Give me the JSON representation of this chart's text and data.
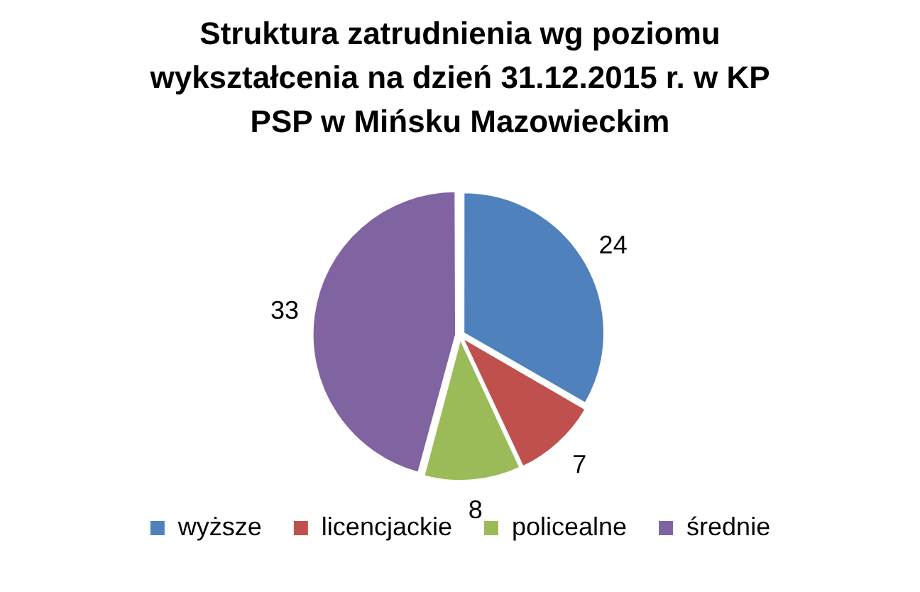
{
  "chart_data": {
    "type": "pie",
    "title": "Struktura zatrudnienia wg poziomu wykształcenia na dzień 31.12.2015 r. w KP PSP w Mińsku Mazowieckim",
    "categories": [
      "wyższe",
      "licencjackie",
      "policealne",
      "średnie"
    ],
    "values": [
      24,
      7,
      8,
      33
    ],
    "colors": [
      "#4f81bd",
      "#c0504d",
      "#9bbb59",
      "#8064a2"
    ],
    "data_labels": true,
    "legend": "bottom"
  }
}
